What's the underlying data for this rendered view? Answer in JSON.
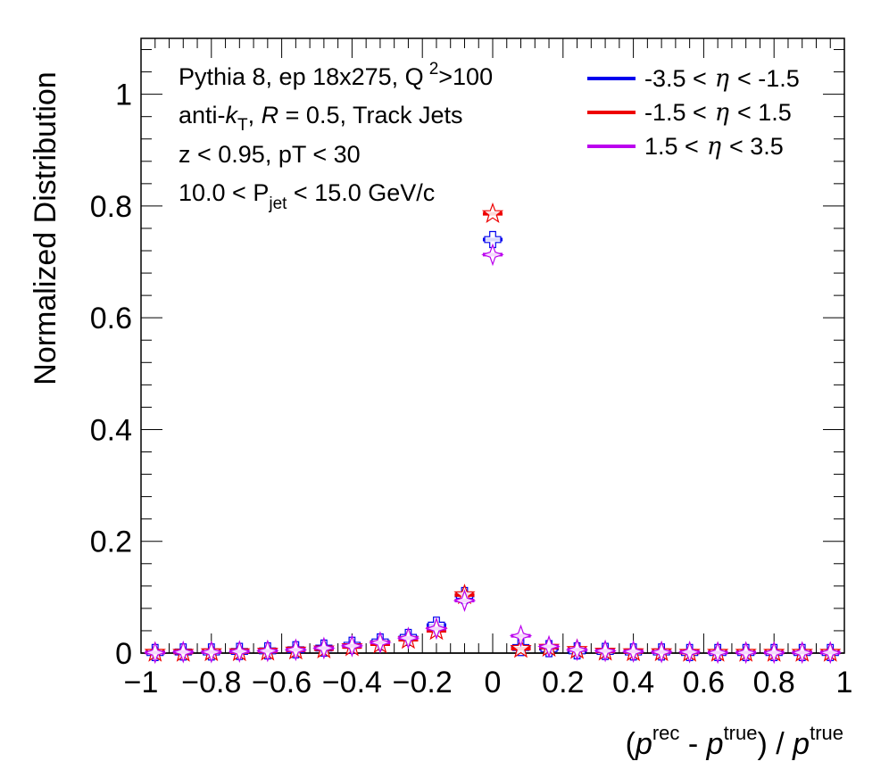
{
  "chart_data": {
    "type": "scatter",
    "xlabel_parts": [
      "(",
      "p",
      "rec",
      " - ",
      "p",
      "true",
      ") / ",
      "p",
      "true"
    ],
    "ylabel": "Normalized Distribution",
    "xlim": [
      -1,
      1
    ],
    "ylim": [
      0,
      1.1
    ],
    "x_ticks": [
      -1,
      -0.8,
      -0.6,
      -0.4,
      -0.2,
      0,
      0.2,
      0.4,
      0.6,
      0.8,
      1
    ],
    "x_tick_labels": [
      "−1",
      "−0.8",
      "−0.6",
      "−0.4",
      "−0.2",
      "0",
      "0.2",
      "0.4",
      "0.6",
      "0.8",
      "1"
    ],
    "y_ticks": [
      0,
      0.2,
      0.4,
      0.6,
      0.8,
      1
    ],
    "y_tick_labels": [
      "0",
      "0.2",
      "0.4",
      "0.6",
      "0.8",
      "1"
    ],
    "bin_width": 0.08,
    "annotations": {
      "line1_main": "Pythia 8, ep 18x275, Q",
      "line1_sup": "2",
      "line1_tail": ">100",
      "line2_a": "anti-",
      "line2_k": "k",
      "line2_ksub": "T",
      "line2_b": ", ",
      "line2_R": "R",
      "line2_c": " = 0.5, Track Jets",
      "line3": "z < 0.95, pT < 30",
      "line4_a": "10.0 < P",
      "line4_sub": "jet",
      "line4_b": " < 15.0 GeV/c"
    },
    "legend": {
      "placement": "top-right",
      "entries": [
        {
          "pre": "-3.5 <",
          "eta": "η",
          "post": "< -1.5"
        },
        {
          "pre": "-1.5 <",
          "eta": "η",
          "post": "< 1.5"
        },
        {
          "pre": "1.5 <",
          "eta": "η",
          "post": "< 3.5"
        }
      ]
    },
    "x": [
      -0.96,
      -0.88,
      -0.8,
      -0.72,
      -0.64,
      -0.56,
      -0.48,
      -0.4,
      -0.32,
      -0.24,
      -0.16,
      -0.08,
      0.0,
      0.08,
      0.16,
      0.24,
      0.32,
      0.4,
      0.48,
      0.56,
      0.64,
      0.72,
      0.8,
      0.88,
      0.96
    ],
    "series": [
      {
        "color": "#0000ee",
        "marker": "cross",
        "values": [
          0.001,
          0.002,
          0.002,
          0.003,
          0.004,
          0.006,
          0.009,
          0.014,
          0.02,
          0.028,
          0.05,
          0.103,
          0.74,
          0.01,
          0.008,
          0.004,
          0.003,
          0.002,
          0.002,
          0.001,
          0.001,
          0.001,
          0.001,
          0.001,
          0.001
        ]
      },
      {
        "color": "#ee0000",
        "marker": "star",
        "values": [
          0.001,
          0.001,
          0.002,
          0.002,
          0.003,
          0.005,
          0.007,
          0.011,
          0.016,
          0.024,
          0.04,
          0.104,
          0.786,
          0.008,
          0.01,
          0.006,
          0.003,
          0.002,
          0.002,
          0.001,
          0.001,
          0.001,
          0.001,
          0.001,
          0.001
        ]
      },
      {
        "color": "#bb00ee",
        "marker": "diamond",
        "values": [
          0.001,
          0.002,
          0.002,
          0.003,
          0.004,
          0.006,
          0.009,
          0.013,
          0.019,
          0.027,
          0.044,
          0.094,
          0.713,
          0.031,
          0.012,
          0.006,
          0.004,
          0.003,
          0.002,
          0.002,
          0.001,
          0.001,
          0.001,
          0.001,
          0.001
        ]
      }
    ]
  }
}
